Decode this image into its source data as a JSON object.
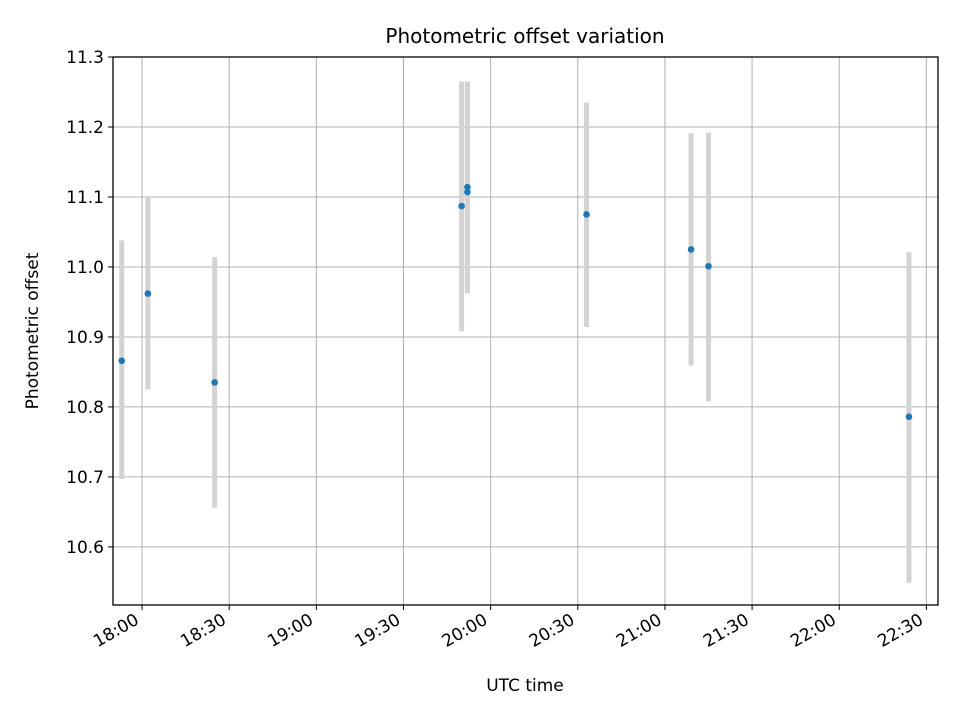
{
  "chart_data": {
    "type": "scatter",
    "title": "Photometric offset variation",
    "xlabel": "UTC time",
    "ylabel": "Photometric offset",
    "x_unit": "time",
    "xlim": [
      "17:50",
      "22:34"
    ],
    "ylim": [
      10.517,
      11.3
    ],
    "x_ticks": [
      "18:00",
      "18:30",
      "19:00",
      "19:30",
      "20:00",
      "20:30",
      "21:00",
      "21:30",
      "22:00",
      "22:30"
    ],
    "y_ticks": [
      "10.6",
      "10.7",
      "10.8",
      "10.9",
      "11.0",
      "11.1",
      "11.2",
      "11.3"
    ],
    "grid": true,
    "marker_color": "#1f77b4",
    "errorbar_color": "#d3d3d3",
    "points": [
      {
        "time": "17:53",
        "y": 10.866,
        "err_low": 10.697,
        "err_high": 11.038
      },
      {
        "time": "18:02",
        "y": 10.962,
        "err_low": 10.825,
        "err_high": 11.1
      },
      {
        "time": "18:25",
        "y": 10.835,
        "err_low": 10.656,
        "err_high": 11.014
      },
      {
        "time": "19:50",
        "y": 11.087,
        "err_low": 10.908,
        "err_high": 11.265
      },
      {
        "time": "19:52",
        "y": 11.114,
        "err_low": 10.962,
        "err_high": 11.265
      },
      {
        "time": "19:52",
        "y": 11.107,
        "err_low": 10.962,
        "err_high": 11.265
      },
      {
        "time": "20:33",
        "y": 11.075,
        "err_low": 10.914,
        "err_high": 11.235
      },
      {
        "time": "21:09",
        "y": 11.025,
        "err_low": 10.859,
        "err_high": 11.191
      },
      {
        "time": "21:15",
        "y": 11.001,
        "err_low": 10.808,
        "err_high": 11.192
      },
      {
        "time": "22:24",
        "y": 10.786,
        "err_low": 10.549,
        "err_high": 11.021
      }
    ]
  }
}
